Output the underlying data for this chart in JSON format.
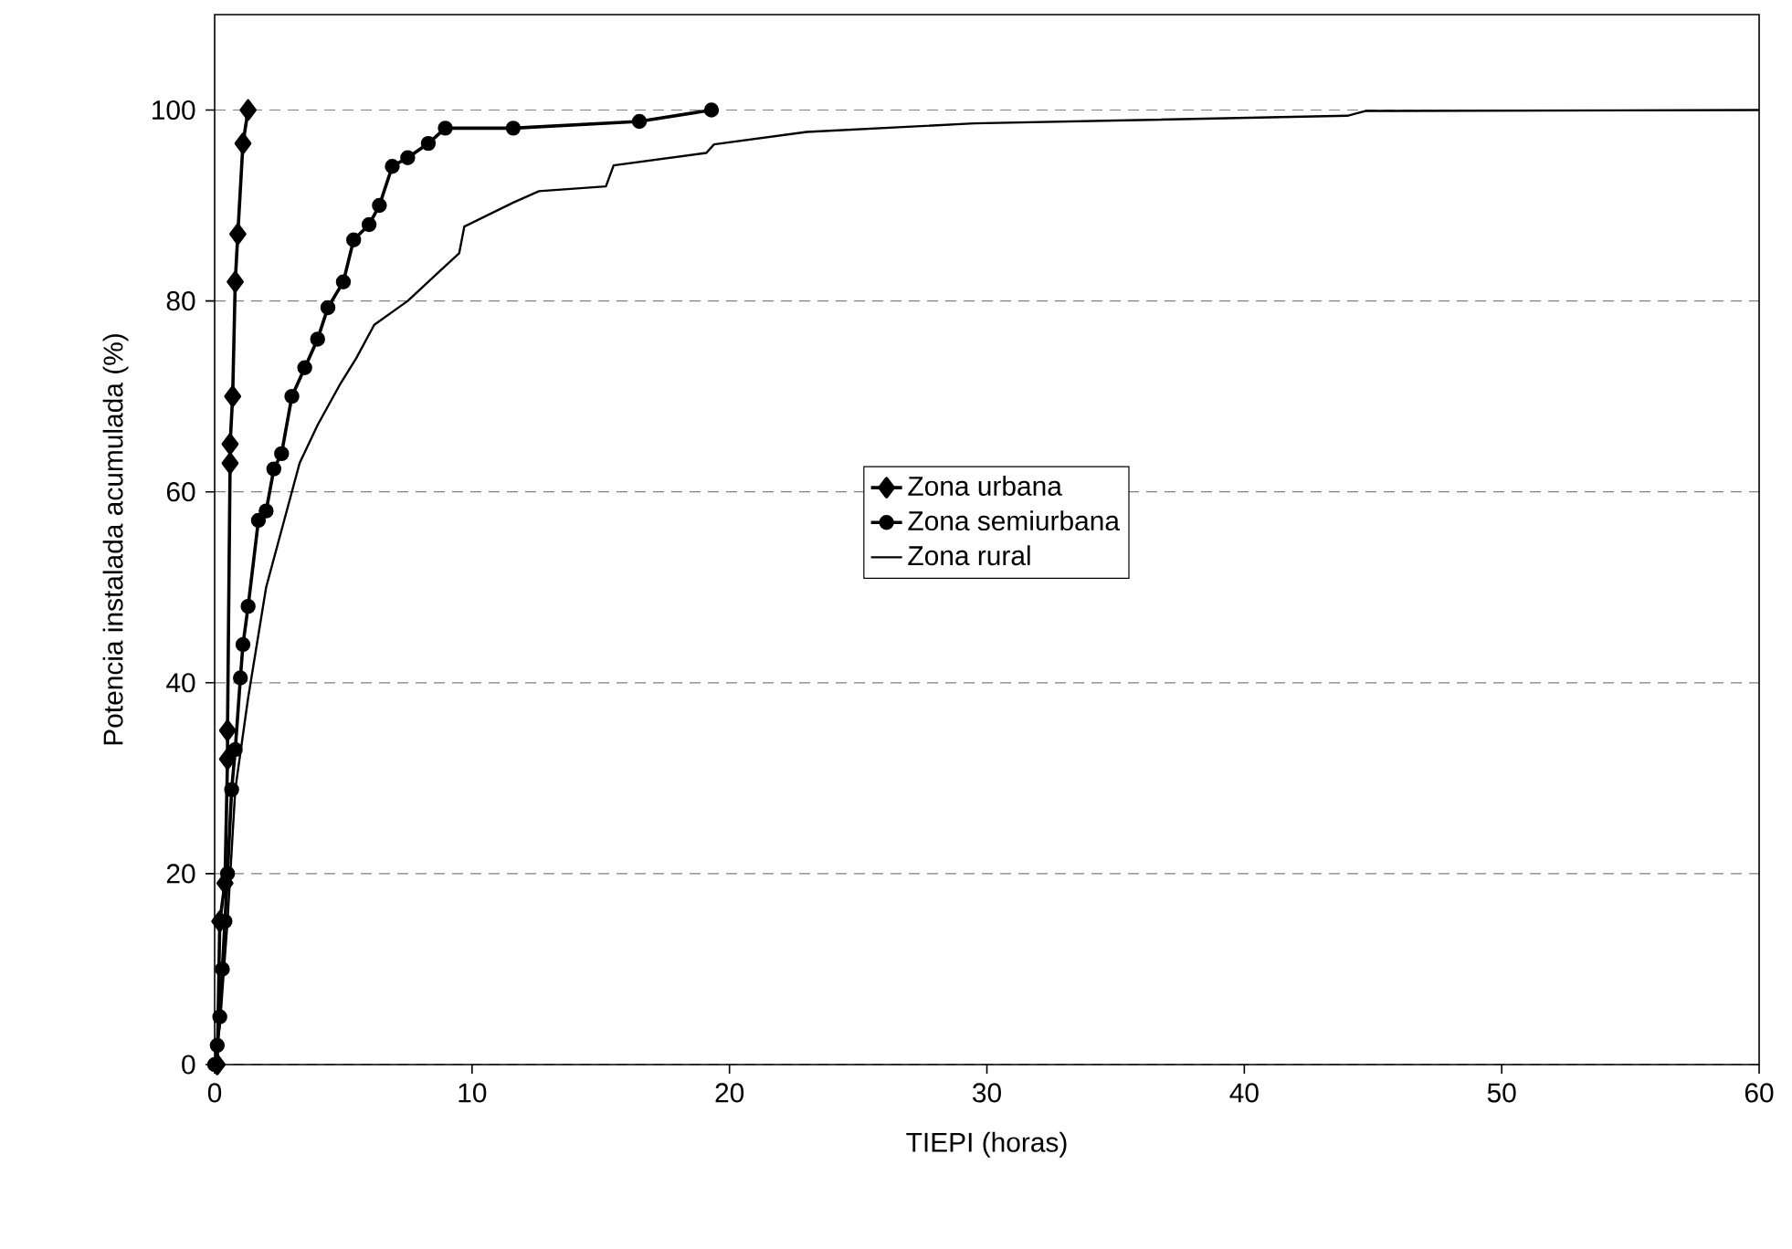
{
  "chart_data": {
    "type": "line",
    "xlabel": "TIEPI (horas)",
    "ylabel": "Potencia instalada acumulada (%)",
    "xlim": [
      0,
      60
    ],
    "ylim": [
      0,
      110
    ],
    "xticks": [
      0,
      10,
      20,
      30,
      40,
      50,
      60
    ],
    "yticks": [
      0,
      20,
      40,
      60,
      80,
      100
    ],
    "grid": "y",
    "legend": "center",
    "series": [
      {
        "name": "Zona urbana",
        "color": "#000000",
        "marker": "diamond",
        "x": [
          0.1,
          0.2,
          0.4,
          0.5,
          0.5,
          0.6,
          0.6,
          0.7,
          0.8,
          0.9,
          1.1,
          1.3
        ],
        "values": [
          0,
          15,
          19,
          32,
          35,
          63,
          65,
          70,
          82,
          87,
          96.5,
          100
        ]
      },
      {
        "name": "Zona semiurbana",
        "color": "#000000",
        "marker": "circle",
        "x": [
          0,
          0.1,
          0.2,
          0.3,
          0.4,
          0.5,
          0.66,
          0.8,
          1.0,
          1.1,
          1.3,
          1.7,
          2.0,
          2.3,
          2.6,
          3.0,
          3.5,
          4.0,
          4.4,
          5.0,
          5.4,
          6.0,
          6.4,
          6.9,
          7.5,
          8.3,
          8.96,
          11.6,
          16.5,
          19.3
        ],
        "values": [
          0,
          2,
          5,
          10,
          15,
          20,
          28.8,
          33,
          40.5,
          44,
          48,
          57,
          58,
          62.4,
          64,
          70,
          73,
          76,
          79.3,
          82,
          86.4,
          88,
          90,
          94.1,
          95,
          96.5,
          98.1,
          98.1,
          98.8,
          100
        ]
      },
      {
        "name": "Zona rural",
        "color": "#000000",
        "marker": "none",
        "x": [
          0,
          0.2,
          0.5,
          0.8,
          1.3,
          2.0,
          2.6,
          3.3,
          4.0,
          4.9,
          5.5,
          6.2,
          7.5,
          8.7,
          9.5,
          9.7,
          11.6,
          12.6,
          15.2,
          15.5,
          19.1,
          19.4,
          23,
          29.5,
          44,
          44.7,
          60
        ],
        "values": [
          0,
          4,
          15,
          28.8,
          38.4,
          50,
          56,
          63,
          67,
          71.4,
          74,
          77.5,
          80,
          83,
          85,
          87.8,
          90.3,
          91.5,
          92,
          94.2,
          95.5,
          96.4,
          97.7,
          98.6,
          99.4,
          99.9,
          100
        ]
      }
    ]
  }
}
